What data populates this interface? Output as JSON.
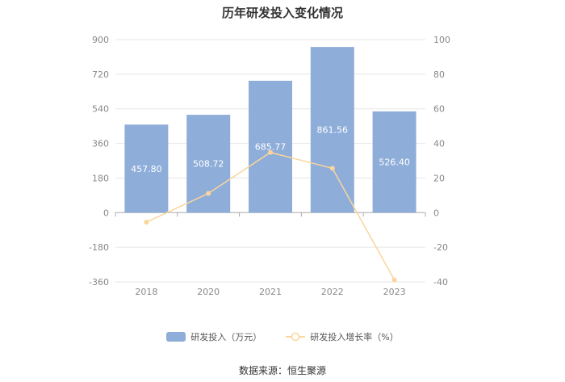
{
  "title": "历年研发投入变化情况",
  "colors": {
    "bar": "#8eadd9",
    "line": "#fbd59c",
    "grid": "#e6e6e6",
    "axis": "#aaaaaa"
  },
  "legend": {
    "bar_label": "研发投入（万元）",
    "line_label": "研发投入增长率（%）"
  },
  "source": "数据来源：恒生聚源",
  "chart_data": {
    "type": "bar",
    "categories": [
      "2018",
      "2020",
      "2021",
      "2022",
      "2023"
    ],
    "series": [
      {
        "name": "研发投入（万元）",
        "type": "bar",
        "axis": "left",
        "values": [
          457.8,
          508.72,
          685.77,
          861.56,
          526.4
        ],
        "labels": [
          "457.80",
          "508.72",
          "685.77",
          "861.56",
          "526.40"
        ]
      },
      {
        "name": "研发投入增长率（%）",
        "type": "line",
        "axis": "right",
        "values": [
          -5.5,
          11.1,
          34.8,
          25.6,
          -38.9
        ]
      }
    ],
    "y_left": {
      "min": -360,
      "max": 900,
      "ticks": [
        "900",
        "720",
        "540",
        "360",
        "180",
        "0",
        "-180",
        "-360"
      ]
    },
    "y_right": {
      "min": -40,
      "max": 100,
      "ticks": [
        "100",
        "80",
        "60",
        "40",
        "20",
        "0",
        "-20",
        "-40"
      ]
    },
    "grid": true,
    "legend_position": "bottom"
  }
}
